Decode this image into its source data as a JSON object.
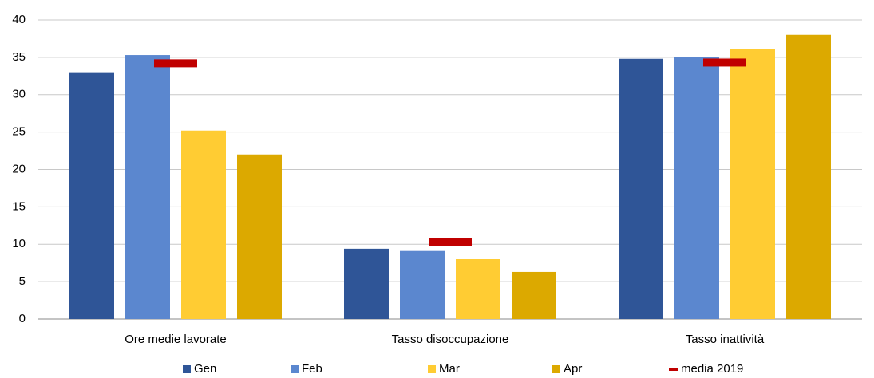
{
  "chart_data": {
    "type": "bar",
    "categories": [
      "Ore medie lavorate",
      "Tasso disoccupazione",
      "Tasso inattività"
    ],
    "series": [
      {
        "name": "Gen",
        "color": "#2f5597",
        "values": [
          33,
          9.4,
          34.8
        ]
      },
      {
        "name": "Feb",
        "color": "#5b87cf",
        "values": [
          35.3,
          9.1,
          35
        ]
      },
      {
        "name": "Mar",
        "color": "#ffcc33",
        "values": [
          25.2,
          8,
          36.1
        ]
      },
      {
        "name": "Apr",
        "color": "#dca900",
        "values": [
          22,
          6.3,
          38
        ]
      },
      {
        "name": "media 2019",
        "color": "#c00000",
        "type": "marker",
        "values": [
          34.2,
          10.3,
          34.3
        ]
      }
    ],
    "ylim": [
      0,
      40
    ],
    "yticks": [
      0,
      5,
      10,
      15,
      20,
      25,
      30,
      35,
      40
    ],
    "grid": true,
    "legend": "bottom"
  }
}
